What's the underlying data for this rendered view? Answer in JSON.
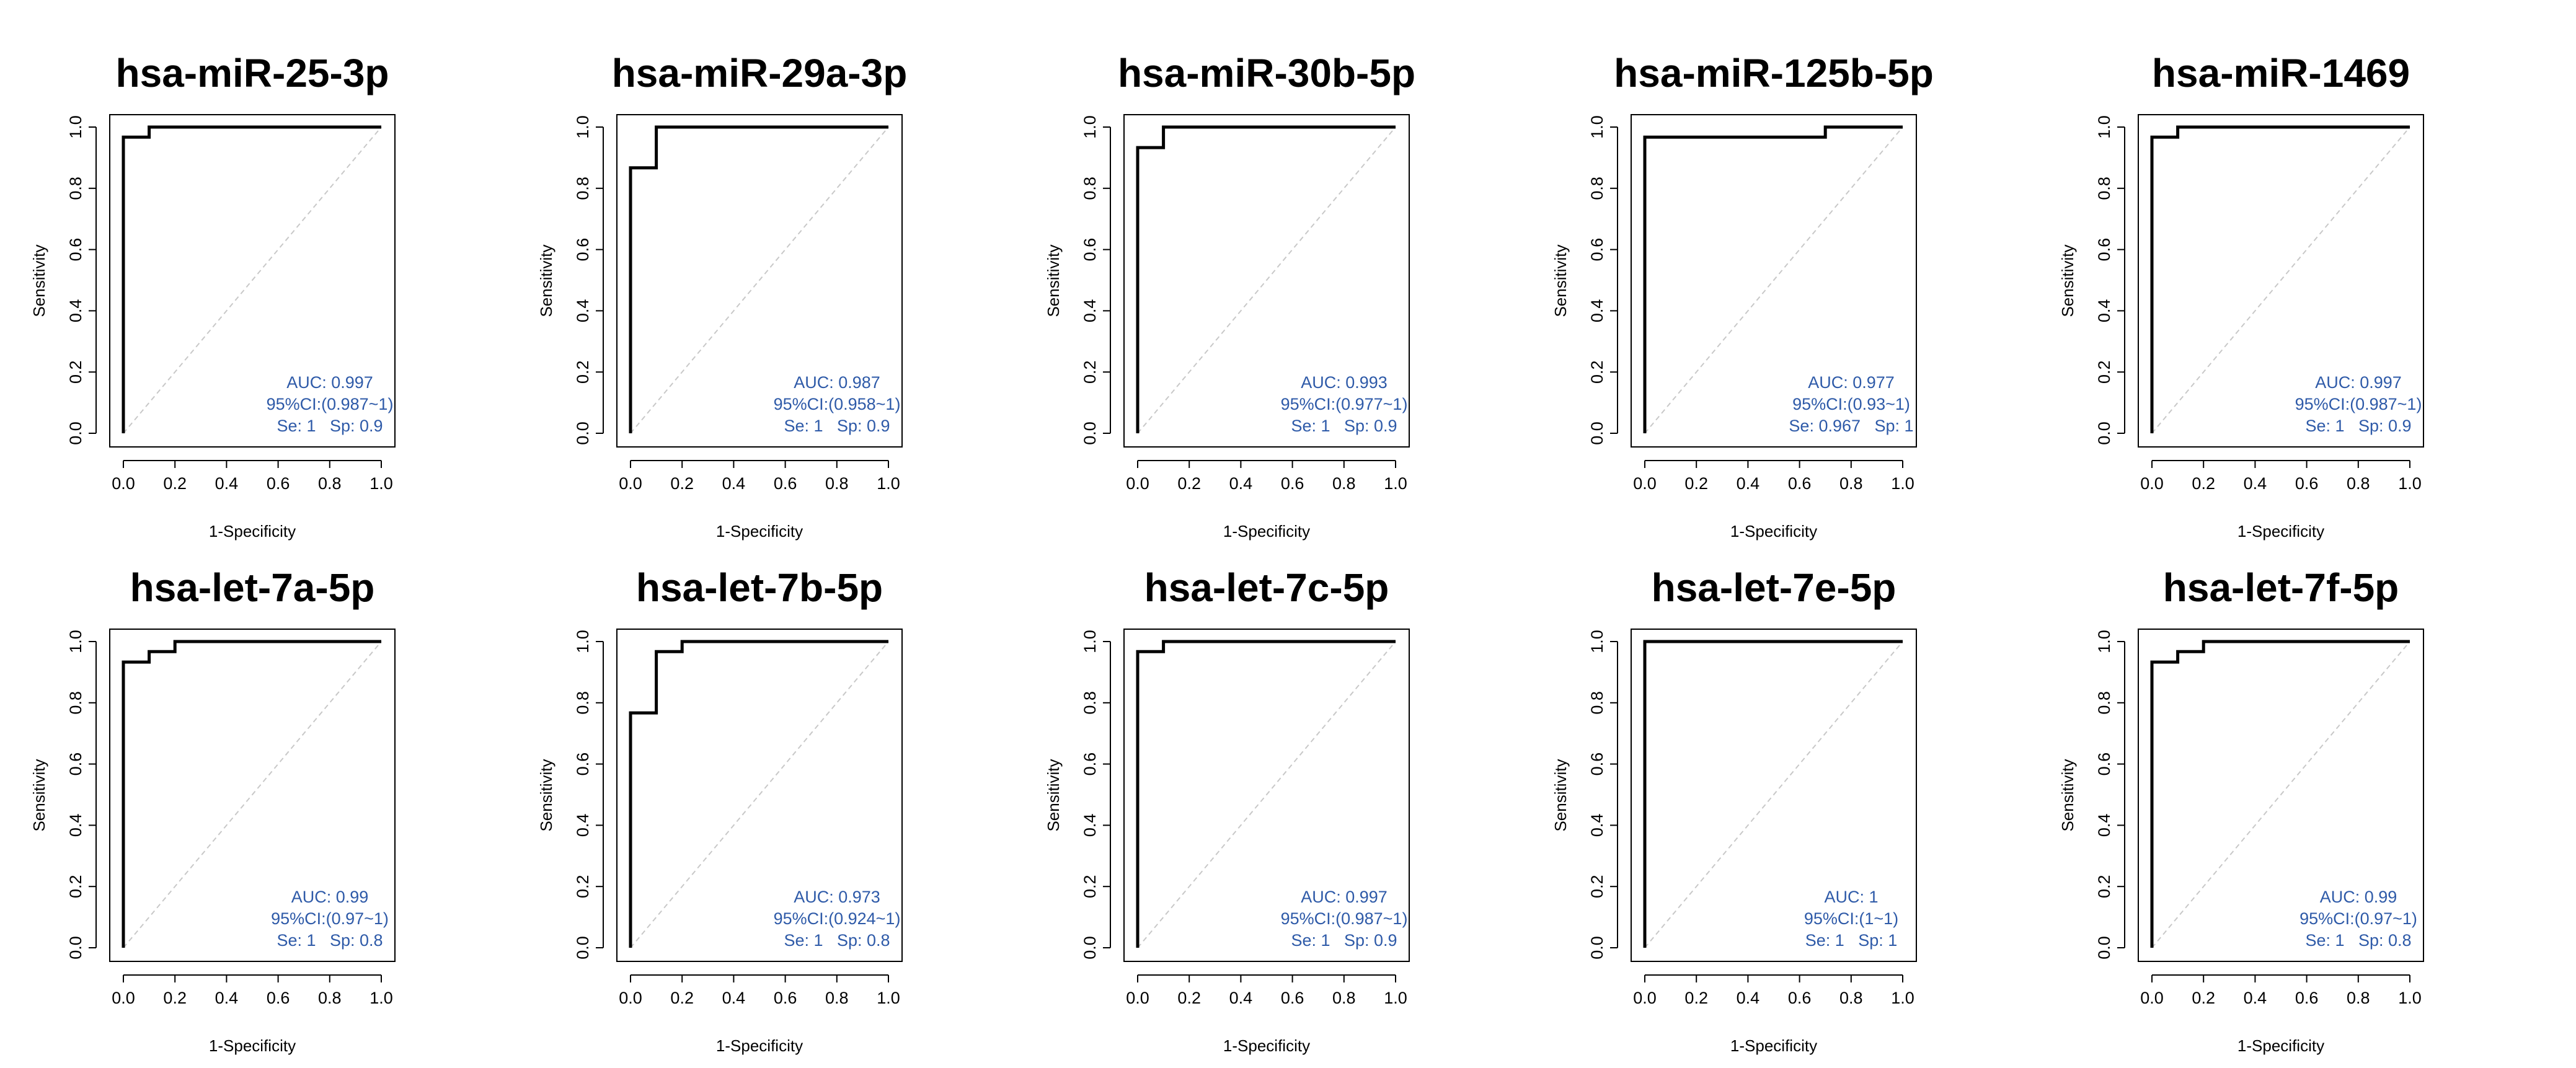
{
  "colors": {
    "curve": "#000000",
    "diagonal": "#c8c8c8",
    "annotation": "#2e5aa8",
    "frame": "#000000"
  },
  "chart_data": [
    {
      "type": "line",
      "title": "hsa-miR-25-3p",
      "xlabel": "1-Specificity",
      "ylabel": "Sensitivity",
      "xlim": [
        0,
        1
      ],
      "ylim": [
        0,
        1
      ],
      "x_ticks": [
        "0.0",
        "0.2",
        "0.4",
        "0.6",
        "0.8",
        "1.0"
      ],
      "y_ticks": [
        "0.0",
        "0.2",
        "0.4",
        "0.6",
        "0.8",
        "1.0"
      ],
      "roc": [
        [
          0,
          0
        ],
        [
          0,
          0.967
        ],
        [
          0.1,
          0.967
        ],
        [
          0.1,
          1
        ],
        [
          1,
          1
        ]
      ],
      "annotation": [
        "AUC: 0.997",
        "95%CI:(0.987~1)",
        "Se: 1   Sp: 0.9"
      ]
    },
    {
      "type": "line",
      "title": "hsa-miR-29a-3p",
      "xlabel": "1-Specificity",
      "ylabel": "Sensitivity",
      "xlim": [
        0,
        1
      ],
      "ylim": [
        0,
        1
      ],
      "x_ticks": [
        "0.0",
        "0.2",
        "0.4",
        "0.6",
        "0.8",
        "1.0"
      ],
      "y_ticks": [
        "0.0",
        "0.2",
        "0.4",
        "0.6",
        "0.8",
        "1.0"
      ],
      "roc": [
        [
          0,
          0
        ],
        [
          0,
          0.867
        ],
        [
          0.1,
          0.867
        ],
        [
          0.1,
          1
        ],
        [
          1,
          1
        ]
      ],
      "annotation": [
        "AUC: 0.987",
        "95%CI:(0.958~1)",
        "Se: 1   Sp: 0.9"
      ]
    },
    {
      "type": "line",
      "title": "hsa-miR-30b-5p",
      "xlabel": "1-Specificity",
      "ylabel": "Sensitivity",
      "xlim": [
        0,
        1
      ],
      "ylim": [
        0,
        1
      ],
      "x_ticks": [
        "0.0",
        "0.2",
        "0.4",
        "0.6",
        "0.8",
        "1.0"
      ],
      "y_ticks": [
        "0.0",
        "0.2",
        "0.4",
        "0.6",
        "0.8",
        "1.0"
      ],
      "roc": [
        [
          0,
          0
        ],
        [
          0,
          0.933
        ],
        [
          0.1,
          0.933
        ],
        [
          0.1,
          1
        ],
        [
          1,
          1
        ]
      ],
      "annotation": [
        "AUC: 0.993",
        "95%CI:(0.977~1)",
        "Se: 1   Sp: 0.9"
      ]
    },
    {
      "type": "line",
      "title": "hsa-miR-125b-5p",
      "xlabel": "1-Specificity",
      "ylabel": "Sensitivity",
      "xlim": [
        0,
        1
      ],
      "ylim": [
        0,
        1
      ],
      "x_ticks": [
        "0.0",
        "0.2",
        "0.4",
        "0.6",
        "0.8",
        "1.0"
      ],
      "y_ticks": [
        "0.0",
        "0.2",
        "0.4",
        "0.6",
        "0.8",
        "1.0"
      ],
      "roc": [
        [
          0,
          0
        ],
        [
          0,
          0.967
        ],
        [
          0.7,
          0.967
        ],
        [
          0.7,
          1
        ],
        [
          1,
          1
        ]
      ],
      "annotation": [
        "AUC: 0.977",
        "95%CI:(0.93~1)",
        "Se: 0.967   Sp: 1"
      ]
    },
    {
      "type": "line",
      "title": "hsa-miR-1469",
      "xlabel": "1-Specificity",
      "ylabel": "Sensitivity",
      "xlim": [
        0,
        1
      ],
      "ylim": [
        0,
        1
      ],
      "x_ticks": [
        "0.0",
        "0.2",
        "0.4",
        "0.6",
        "0.8",
        "1.0"
      ],
      "y_ticks": [
        "0.0",
        "0.2",
        "0.4",
        "0.6",
        "0.8",
        "1.0"
      ],
      "roc": [
        [
          0,
          0
        ],
        [
          0,
          0.967
        ],
        [
          0.1,
          0.967
        ],
        [
          0.1,
          1
        ],
        [
          1,
          1
        ]
      ],
      "annotation": [
        "AUC: 0.997",
        "95%CI:(0.987~1)",
        "Se: 1   Sp: 0.9"
      ]
    },
    {
      "type": "line",
      "title": "hsa-let-7a-5p",
      "xlabel": "1-Specificity",
      "ylabel": "Sensitivity",
      "xlim": [
        0,
        1
      ],
      "ylim": [
        0,
        1
      ],
      "x_ticks": [
        "0.0",
        "0.2",
        "0.4",
        "0.6",
        "0.8",
        "1.0"
      ],
      "y_ticks": [
        "0.0",
        "0.2",
        "0.4",
        "0.6",
        "0.8",
        "1.0"
      ],
      "roc": [
        [
          0,
          0
        ],
        [
          0,
          0.933
        ],
        [
          0.1,
          0.933
        ],
        [
          0.1,
          0.967
        ],
        [
          0.2,
          0.967
        ],
        [
          0.2,
          1
        ],
        [
          1,
          1
        ]
      ],
      "annotation": [
        "AUC: 0.99",
        "95%CI:(0.97~1)",
        "Se: 1   Sp: 0.8"
      ]
    },
    {
      "type": "line",
      "title": "hsa-let-7b-5p",
      "xlabel": "1-Specificity",
      "ylabel": "Sensitivity",
      "xlim": [
        0,
        1
      ],
      "ylim": [
        0,
        1
      ],
      "x_ticks": [
        "0.0",
        "0.2",
        "0.4",
        "0.6",
        "0.8",
        "1.0"
      ],
      "y_ticks": [
        "0.0",
        "0.2",
        "0.4",
        "0.6",
        "0.8",
        "1.0"
      ],
      "roc": [
        [
          0,
          0
        ],
        [
          0,
          0.767
        ],
        [
          0.1,
          0.767
        ],
        [
          0.1,
          0.967
        ],
        [
          0.2,
          0.967
        ],
        [
          0.2,
          1
        ],
        [
          1,
          1
        ]
      ],
      "annotation": [
        "AUC: 0.973",
        "95%CI:(0.924~1)",
        "Se: 1   Sp: 0.8"
      ]
    },
    {
      "type": "line",
      "title": "hsa-let-7c-5p",
      "xlabel": "1-Specificity",
      "ylabel": "Sensitivity",
      "xlim": [
        0,
        1
      ],
      "ylim": [
        0,
        1
      ],
      "x_ticks": [
        "0.0",
        "0.2",
        "0.4",
        "0.6",
        "0.8",
        "1.0"
      ],
      "y_ticks": [
        "0.0",
        "0.2",
        "0.4",
        "0.6",
        "0.8",
        "1.0"
      ],
      "roc": [
        [
          0,
          0
        ],
        [
          0,
          0.967
        ],
        [
          0.1,
          0.967
        ],
        [
          0.1,
          1
        ],
        [
          1,
          1
        ]
      ],
      "annotation": [
        "AUC: 0.997",
        "95%CI:(0.987~1)",
        "Se: 1   Sp: 0.9"
      ]
    },
    {
      "type": "line",
      "title": "hsa-let-7e-5p",
      "xlabel": "1-Specificity",
      "ylabel": "Sensitivity",
      "xlim": [
        0,
        1
      ],
      "ylim": [
        0,
        1
      ],
      "x_ticks": [
        "0.0",
        "0.2",
        "0.4",
        "0.6",
        "0.8",
        "1.0"
      ],
      "y_ticks": [
        "0.0",
        "0.2",
        "0.4",
        "0.6",
        "0.8",
        "1.0"
      ],
      "roc": [
        [
          0,
          0
        ],
        [
          0,
          1
        ],
        [
          1,
          1
        ]
      ],
      "annotation": [
        "AUC: 1",
        "95%CI:(1~1)",
        "Se: 1   Sp: 1"
      ]
    },
    {
      "type": "line",
      "title": "hsa-let-7f-5p",
      "xlabel": "1-Specificity",
      "ylabel": "Sensitivity",
      "xlim": [
        0,
        1
      ],
      "ylim": [
        0,
        1
      ],
      "x_ticks": [
        "0.0",
        "0.2",
        "0.4",
        "0.6",
        "0.8",
        "1.0"
      ],
      "y_ticks": [
        "0.0",
        "0.2",
        "0.4",
        "0.6",
        "0.8",
        "1.0"
      ],
      "roc": [
        [
          0,
          0
        ],
        [
          0,
          0.933
        ],
        [
          0.1,
          0.933
        ],
        [
          0.1,
          0.967
        ],
        [
          0.2,
          0.967
        ],
        [
          0.2,
          1
        ],
        [
          1,
          1
        ]
      ],
      "annotation": [
        "AUC: 0.99",
        "95%CI:(0.97~1)",
        "Se: 1   Sp: 0.8"
      ]
    }
  ]
}
